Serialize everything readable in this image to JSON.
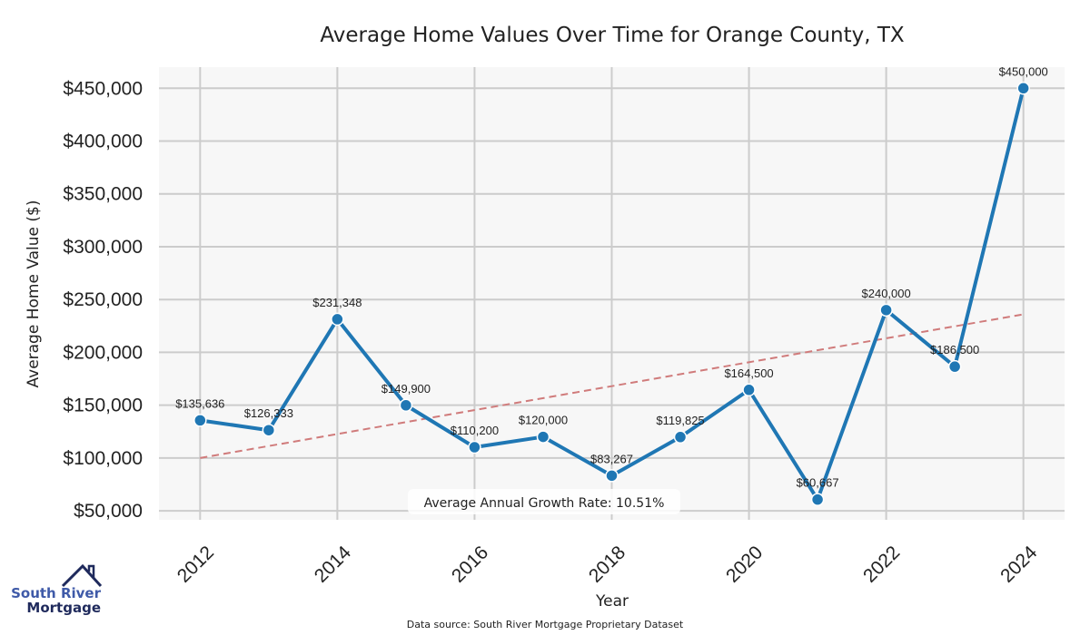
{
  "chart_data": {
    "type": "line",
    "title": "Average Home Values Over Time for Orange County, TX",
    "xlabel": "Year",
    "ylabel": "Average Home Value ($)",
    "xlim": [
      2011.4,
      2024.6
    ],
    "ylim": [
      41500,
      470000
    ],
    "grid": true,
    "x_ticks": [
      2012,
      2014,
      2016,
      2018,
      2020,
      2022,
      2024
    ],
    "x_tick_labels": [
      "2012",
      "2014",
      "2016",
      "2018",
      "2020",
      "2022",
      "2024"
    ],
    "y_ticks": [
      50000,
      100000,
      150000,
      200000,
      250000,
      300000,
      350000,
      400000,
      450000
    ],
    "y_tick_labels": [
      "$50,000",
      "$100,000",
      "$150,000",
      "$200,000",
      "$250,000",
      "$300,000",
      "$350,000",
      "$400,000",
      "$450,000"
    ],
    "series": [
      {
        "name": "Average Home Value",
        "color": "#1f77b4",
        "x": [
          2012,
          2013,
          2014,
          2015,
          2016,
          2017,
          2018,
          2019,
          2020,
          2021,
          2022,
          2023,
          2024
        ],
        "values": [
          135636,
          126333,
          231348,
          149900,
          110200,
          120000,
          83267,
          119825,
          164500,
          60667,
          240000,
          186500,
          450000
        ],
        "labels": [
          "$135,636",
          "$126,333",
          "$231,348",
          "$149,900",
          "$110,200",
          "$120,000",
          "$83,267",
          "$119,825",
          "$164,500",
          "$60,667",
          "$240,000",
          "$186,500",
          "$450,000"
        ]
      },
      {
        "name": "Trend",
        "color": "#d07b7b",
        "style": "dashed",
        "x": [
          2012,
          2024
        ],
        "values": [
          100000,
          236000
        ]
      }
    ],
    "annotations": [
      {
        "text": "Average Annual Growth Rate: 10.51%"
      }
    ],
    "footer": "Data source: South River Mortgage Proprietary Dataset"
  },
  "logo": {
    "line1": "South River",
    "line2": "Mortgage"
  },
  "colors": {
    "plot_bg": "#f7f7f7",
    "grid": "#cccccc",
    "line": "#1f77b4",
    "trend": "#d07b7b",
    "logo_light": "#3f5aa8",
    "logo_dark": "#1f2a5c"
  }
}
